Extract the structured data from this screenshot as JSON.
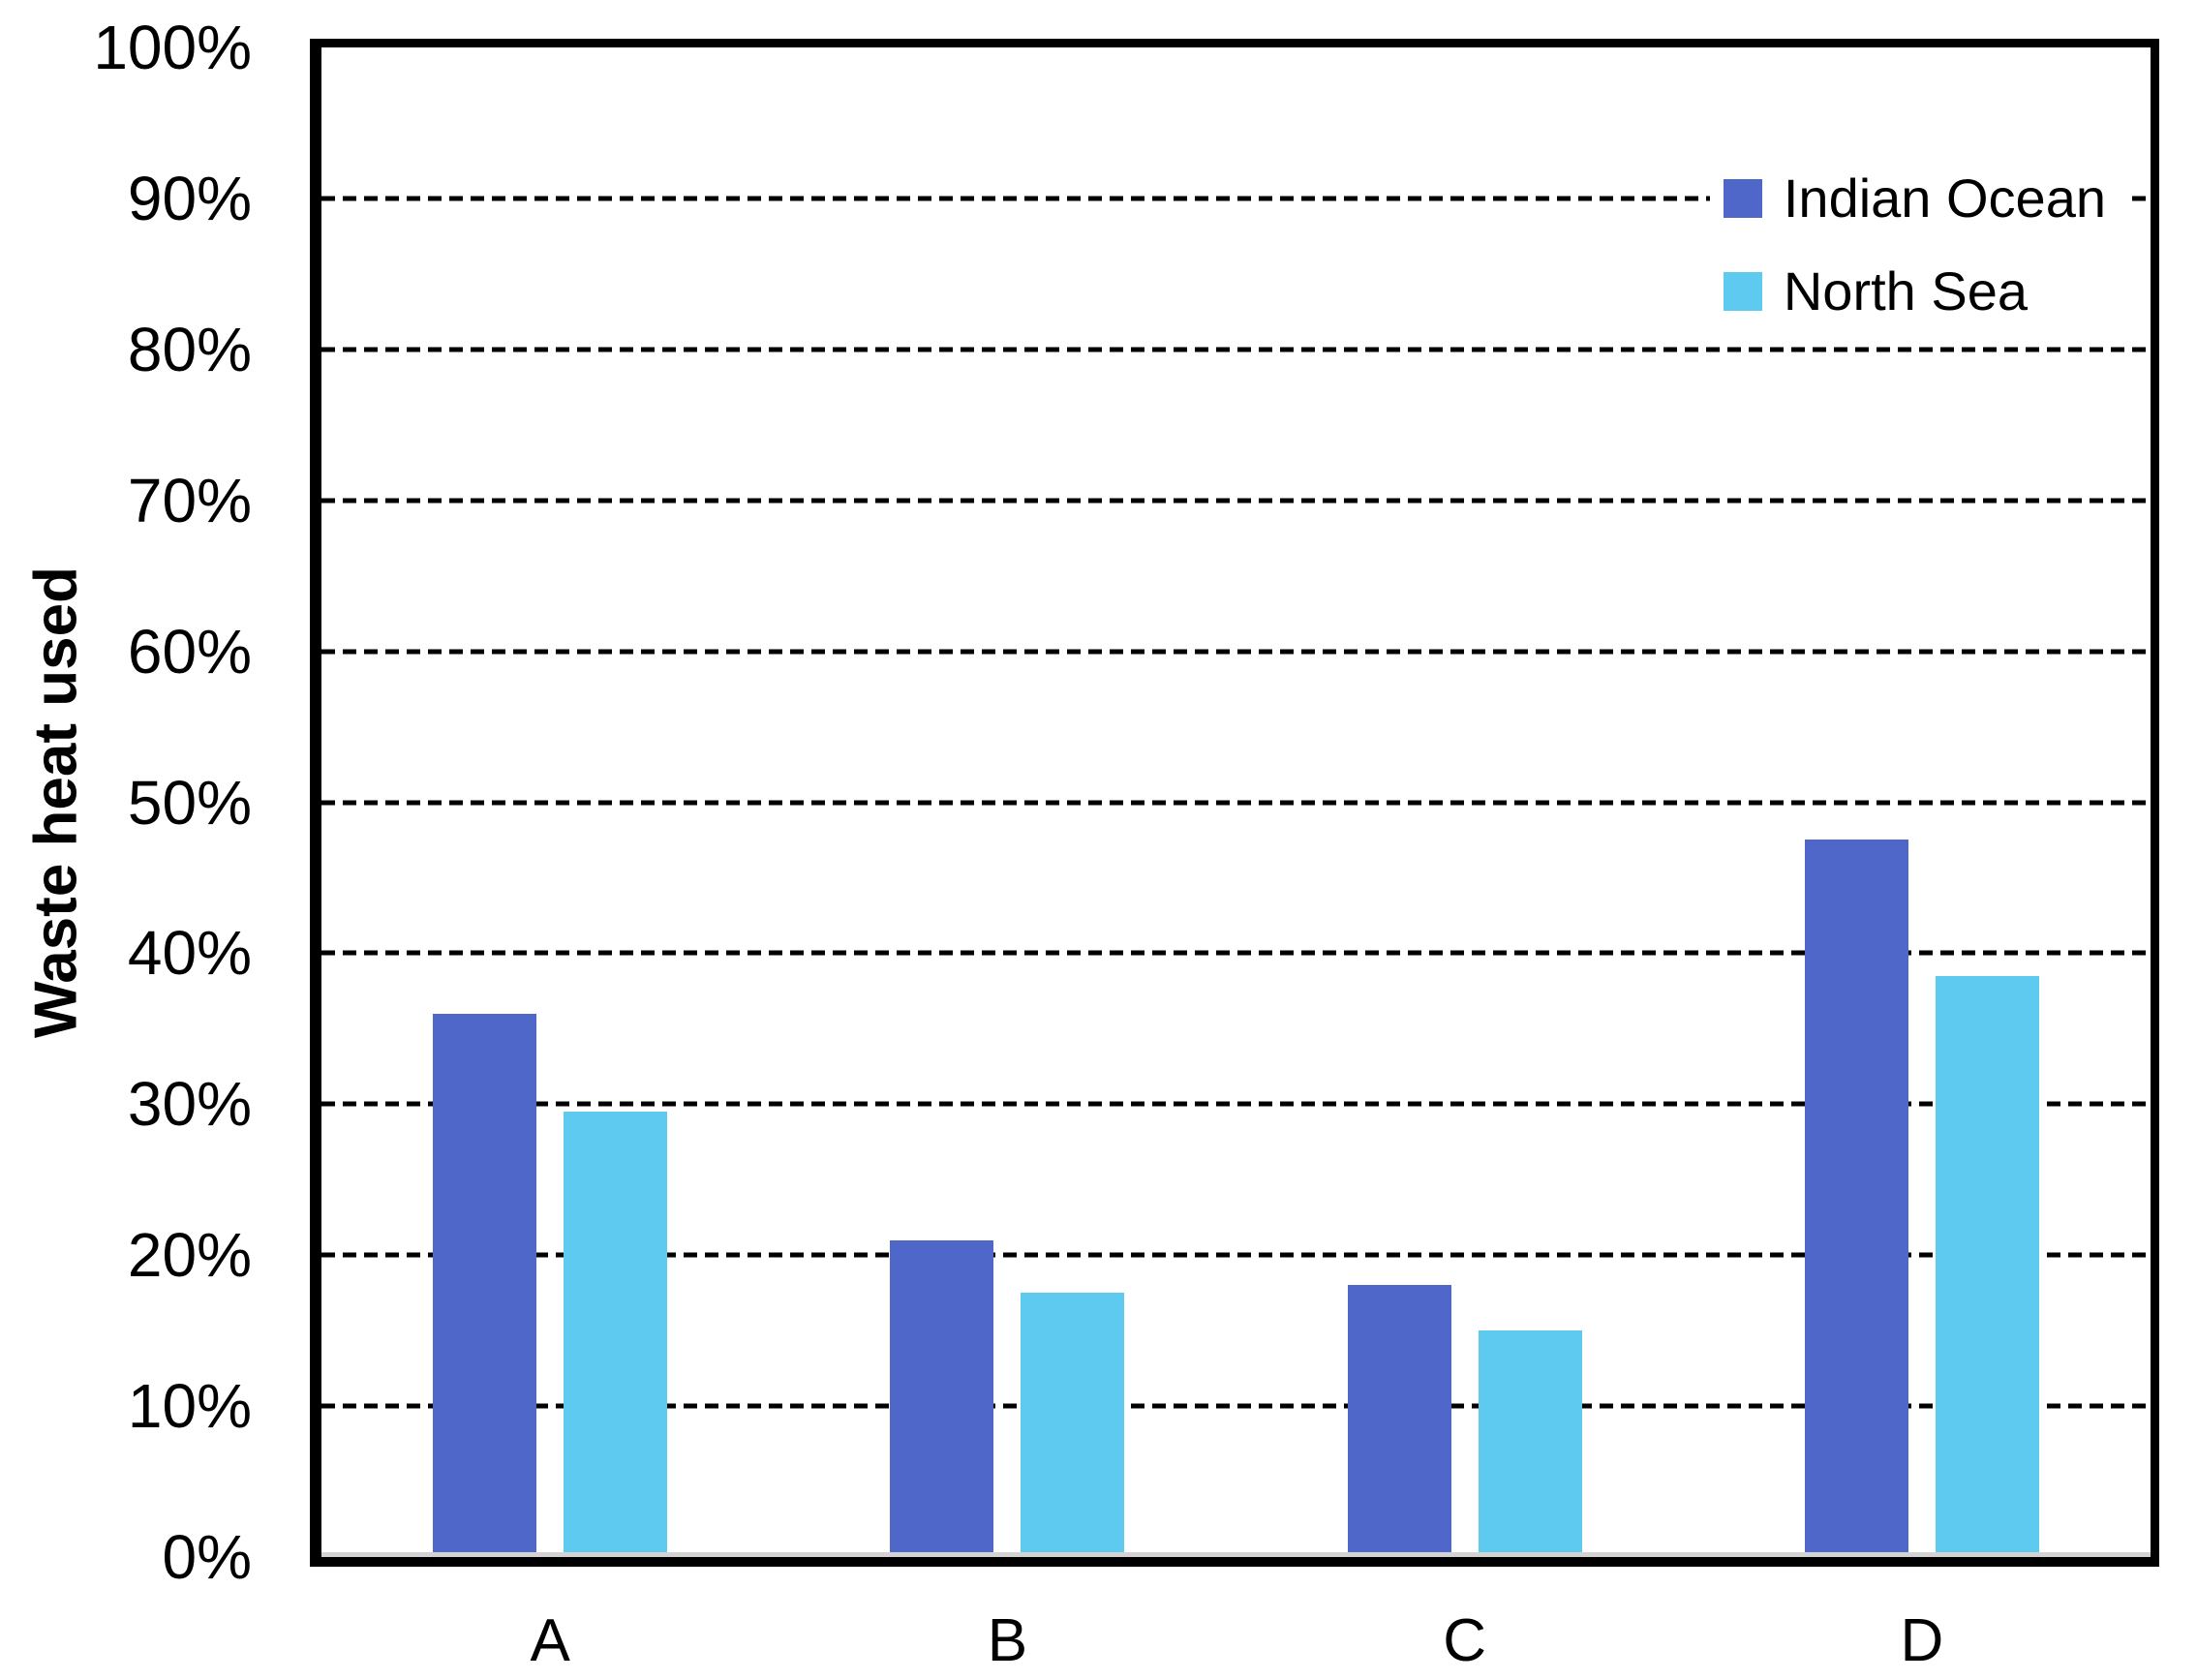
{
  "chart_data": {
    "type": "bar",
    "title": "",
    "xlabel": "",
    "ylabel": "Waste heat used",
    "categories": [
      "A",
      "B",
      "C",
      "D"
    ],
    "series": [
      {
        "name": "Indian Ocean",
        "color": "#4E67C8",
        "values": [
          36,
          21,
          18,
          47.5
        ]
      },
      {
        "name": "North Sea",
        "color": "#5ECAF0",
        "values": [
          29.5,
          17.5,
          15,
          38.5
        ]
      }
    ],
    "ylim": [
      0,
      100
    ],
    "ytick_step": 10,
    "ytick_labels": [
      "0%",
      "10%",
      "20%",
      "30%",
      "40%",
      "50%",
      "60%",
      "70%",
      "80%",
      "90%",
      "100%"
    ],
    "grid": "horizontal-dashed",
    "legend_position": "top-right-inside",
    "axis_color": "#000000",
    "background_color": "#FFFFFF"
  }
}
